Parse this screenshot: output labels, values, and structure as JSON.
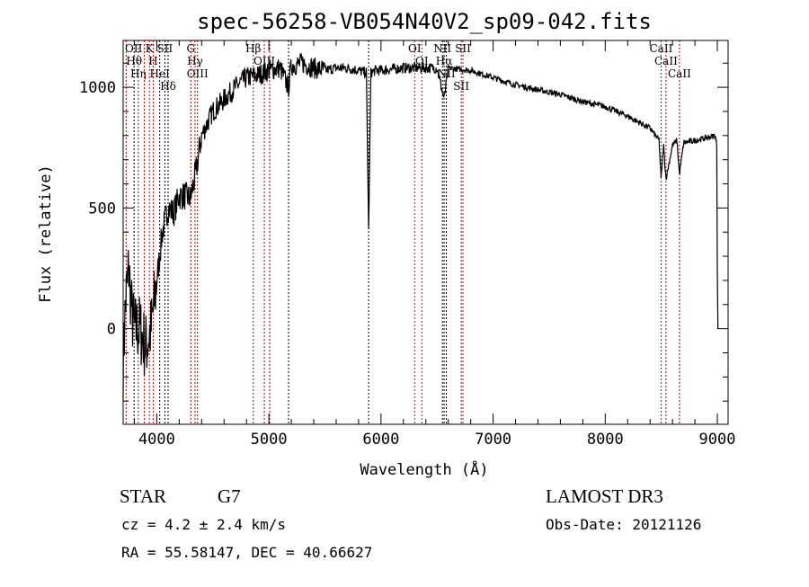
{
  "chart_data": {
    "type": "line",
    "title": "spec-56258-VB054N40V2_sp09-042.fits",
    "xlabel": "Wavelength (Å)",
    "ylabel": "Flux (relative)",
    "xlim": [
      3700,
      9096
    ],
    "ylim": [
      -396,
      1194
    ],
    "xticks": [
      4000,
      5000,
      6000,
      7000,
      8000,
      9000
    ],
    "yticks": [
      0,
      500,
      1000
    ],
    "series": [
      {
        "name": "spectrum",
        "x": [
          3700,
          3720,
          3750,
          3780,
          3800,
          3850,
          3900,
          3950,
          4000,
          4050,
          4100,
          4150,
          4200,
          4250,
          4300,
          4350,
          4400,
          4450,
          4500,
          4600,
          4700,
          4800,
          4900,
          5000,
          5100,
          5175,
          5200,
          5300,
          5400,
          5500,
          5600,
          5700,
          5800,
          5870,
          5890,
          5910,
          5950,
          6000,
          6200,
          6400,
          6500,
          6563,
          6600,
          6800,
          7000,
          7200,
          7400,
          7600,
          7800,
          8000,
          8200,
          8400,
          8480,
          8498,
          8520,
          8542,
          8600,
          8640,
          8662,
          8700,
          8800,
          8900,
          8980,
          8995,
          9000,
          9005
        ],
        "y": [
          -150,
          100,
          250,
          50,
          0,
          0,
          -80,
          0,
          200,
          400,
          500,
          480,
          550,
          550,
          540,
          650,
          800,
          850,
          900,
          950,
          1000,
          1040,
          1050,
          1070,
          1080,
          1000,
          1090,
          1100,
          1080,
          1070,
          1080,
          1080,
          1070,
          1060,
          400,
          1060,
          1070,
          1070,
          1080,
          1080,
          1080,
          950,
          1080,
          1070,
          1040,
          1010,
          990,
          970,
          940,
          920,
          880,
          830,
          780,
          620,
          760,
          620,
          760,
          780,
          640,
          770,
          780,
          790,
          800,
          760,
          250,
          0
        ]
      }
    ],
    "lines": {
      "emission": [
        {
          "w": 3727,
          "label": "OII"
        },
        {
          "w": 3835,
          "label": "Hη"
        },
        {
          "w": 3889,
          "label": ""
        },
        {
          "w": 3934,
          "label": "K"
        },
        {
          "w": 3969,
          "label": "H"
        },
        {
          "w": 4304,
          "label": "G"
        },
        {
          "w": 4341,
          "label": "Hγ"
        },
        {
          "w": 4363,
          "label": "OIII"
        },
        {
          "w": 4861,
          "label": "Hβ"
        },
        {
          "w": 4959,
          "label": "OIII"
        },
        {
          "w": 5007,
          "label": ""
        },
        {
          "w": 6300,
          "label": "OI"
        },
        {
          "w": 6364,
          "label": "OI"
        },
        {
          "w": 6716,
          "label": "SII"
        },
        {
          "w": 6731,
          "label": "SII"
        },
        {
          "w": 8498,
          "label": "CaII"
        },
        {
          "w": 8542,
          "label": "CaII"
        },
        {
          "w": 8662,
          "label": "CaII"
        }
      ],
      "absorption": [
        {
          "w": 3798,
          "label": "Hθ"
        },
        {
          "w": 4026,
          "label": "HeI"
        },
        {
          "w": 4072,
          "label": "SII"
        },
        {
          "w": 4101,
          "label": "Hδ"
        },
        {
          "w": 5175,
          "label": ""
        },
        {
          "w": 5890,
          "label": ""
        },
        {
          "w": 6548,
          "label": "NII"
        },
        {
          "w": 6563,
          "label": "Hα"
        },
        {
          "w": 6583,
          "label": "NII"
        }
      ]
    }
  },
  "info": {
    "class": "STAR",
    "subclass": "G7",
    "survey": "LAMOST DR3",
    "cz": "cz = 4.2 ± 2.4 km/s",
    "obsdate": "Obs-Date: 20121126",
    "coords": "RA =  55.58147, DEC =  40.66627"
  },
  "colors": {
    "emission": "#c00000",
    "absorption": "#000000"
  }
}
